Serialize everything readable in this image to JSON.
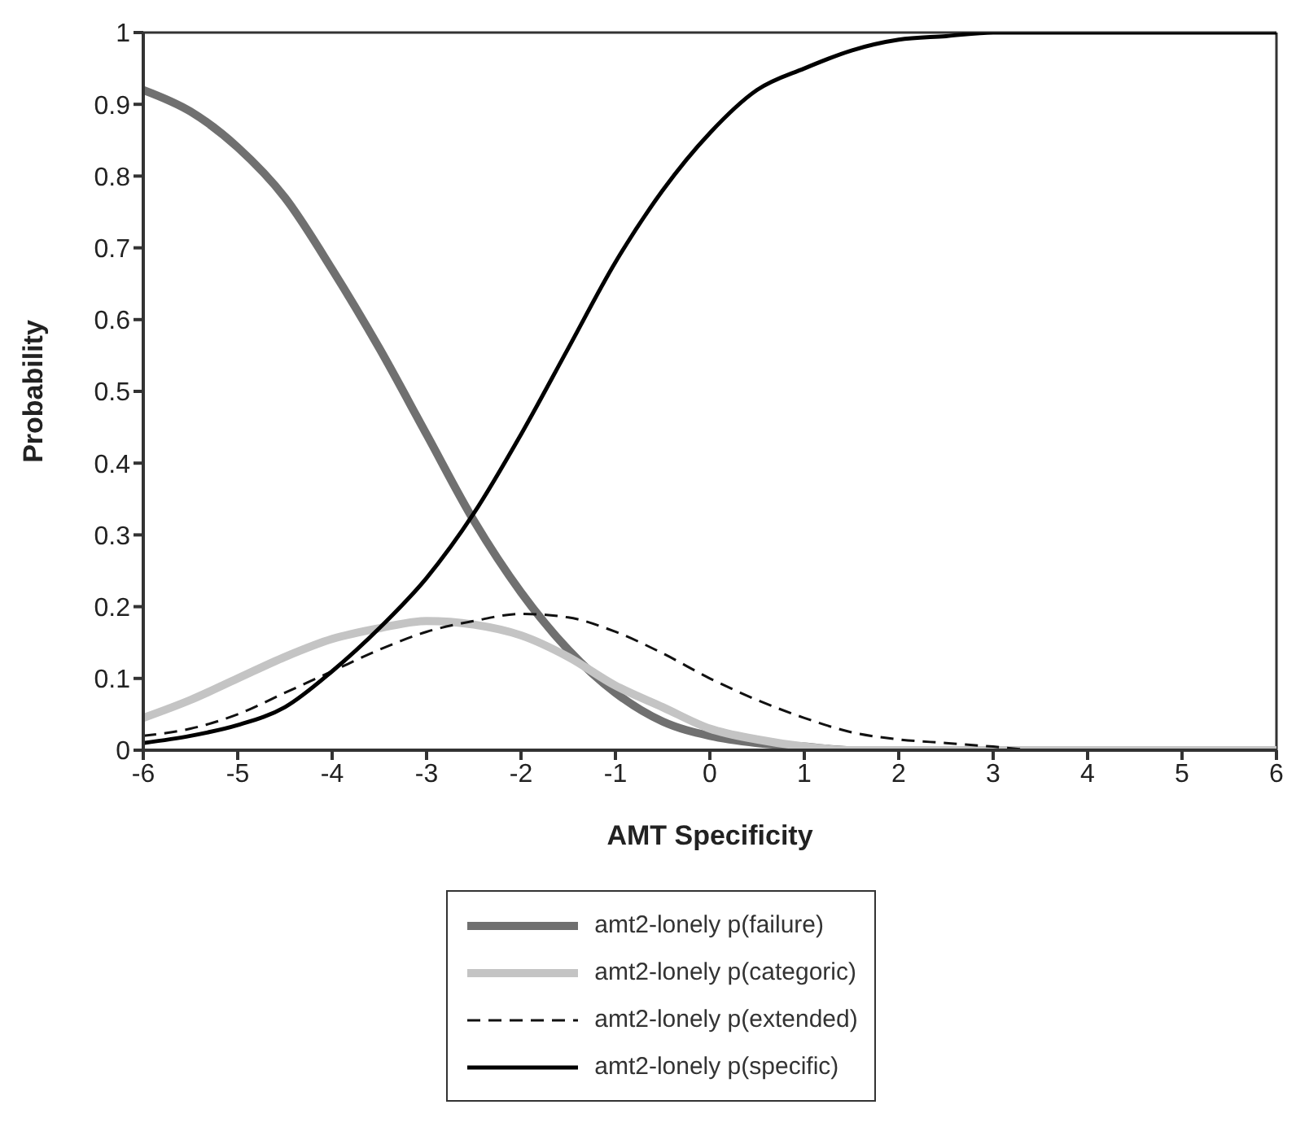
{
  "chart_data": {
    "type": "line",
    "xlabel": "AMT Specificity",
    "ylabel": "Probability",
    "x": [
      -6,
      -5.5,
      -5,
      -4.5,
      -4,
      -3.5,
      -3,
      -2.5,
      -2,
      -1.5,
      -1,
      -0.5,
      0,
      0.5,
      1,
      1.5,
      2,
      2.5,
      3,
      3.5,
      4,
      4.5,
      5,
      5.5,
      6
    ],
    "series": [
      {
        "name": "amt2-lonely p(failure)",
        "color": "#707070",
        "line_style": "solid",
        "values": [
          0.92,
          0.89,
          0.84,
          0.77,
          0.67,
          0.56,
          0.44,
          0.32,
          0.22,
          0.14,
          0.08,
          0.04,
          0.02,
          0.01,
          0.005,
          0,
          0,
          0,
          0,
          0,
          0,
          0,
          0,
          0,
          0
        ]
      },
      {
        "name": "amt2-lonely p(categoric)",
        "color": "#c4c4c4",
        "line_style": "solid",
        "values": [
          0.045,
          0.07,
          0.1,
          0.13,
          0.155,
          0.17,
          0.18,
          0.175,
          0.16,
          0.13,
          0.09,
          0.06,
          0.03,
          0.015,
          0.005,
          0,
          0,
          0,
          0,
          0,
          0,
          0,
          0,
          0,
          0
        ]
      },
      {
        "name": "amt2-lonely p(extended)",
        "color": "#111111",
        "line_style": "dashed",
        "values": [
          0.02,
          0.03,
          0.05,
          0.08,
          0.11,
          0.14,
          0.165,
          0.18,
          0.19,
          0.185,
          0.165,
          0.135,
          0.1,
          0.07,
          0.045,
          0.025,
          0.015,
          0.01,
          0.005,
          0,
          0,
          0,
          0,
          0,
          0
        ]
      },
      {
        "name": "amt2-lonely p(specific)",
        "color": "#000000",
        "line_style": "solid",
        "values": [
          0.01,
          0.02,
          0.035,
          0.06,
          0.11,
          0.17,
          0.24,
          0.33,
          0.44,
          0.56,
          0.68,
          0.78,
          0.86,
          0.92,
          0.95,
          0.975,
          0.99,
          0.995,
          1,
          1,
          1,
          1,
          1,
          1,
          1
        ]
      }
    ],
    "xlim": [
      -6,
      6
    ],
    "xticks": [
      -6,
      -5,
      -4,
      -3,
      -2,
      -1,
      0,
      1,
      2,
      3,
      4,
      5,
      6
    ],
    "ylim": [
      0,
      1
    ],
    "yticks": [
      0,
      0.1,
      0.2,
      0.3,
      0.4,
      0.5,
      0.6,
      0.7,
      0.8,
      0.9,
      1
    ],
    "grid": false,
    "legend": "bottom",
    "marker": "none"
  }
}
